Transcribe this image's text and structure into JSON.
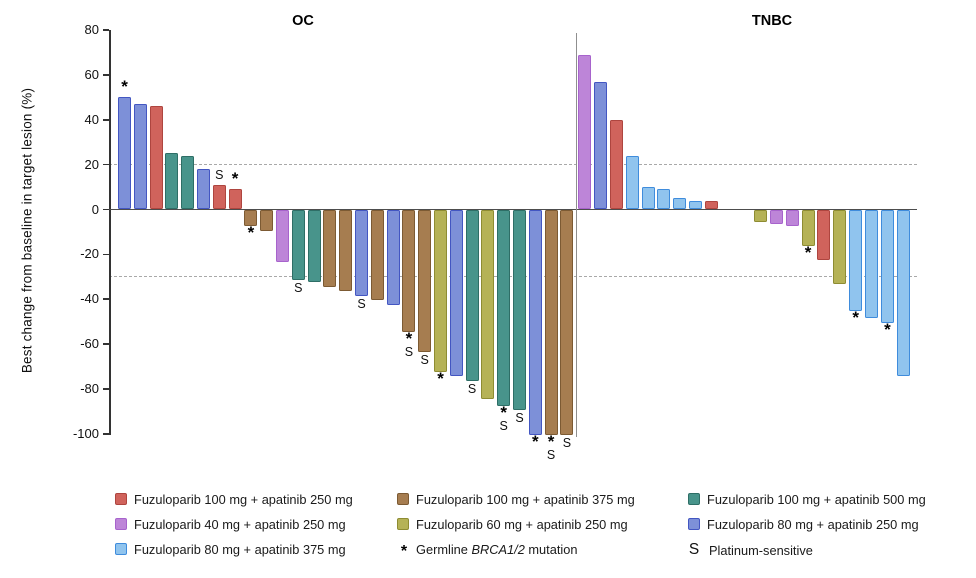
{
  "chart_data": {
    "type": "bar",
    "ylabel": "Best change from baseline in target lesion (%)",
    "ylim": [
      -100,
      80
    ],
    "yticks": [
      80,
      60,
      40,
      20,
      0,
      -20,
      -40,
      -60,
      -80,
      -100
    ],
    "reference_lines": [
      20,
      -30
    ],
    "grid": "dashed reference lines at +20% and -30% only",
    "legend_position": "bottom",
    "series_colors": {
      "f100a250": {
        "label": "Fuzuloparib 100 mg + apatinib 250 mg",
        "fill": "#d0635c",
        "border": "#ae453f"
      },
      "f40a250": {
        "label": "Fuzuloparib 40 mg + apatinib 250 mg",
        "fill": "#bd85d8",
        "border": "#a763cc"
      },
      "f80a375": {
        "label": "Fuzuloparib 80 mg + apatinib 375 mg",
        "fill": "#90c4ee",
        "border": "#3f8cdc"
      },
      "f100a375": {
        "label": "Fuzuloparib 100 mg + apatinib 375 mg",
        "fill": "#a67d50",
        "border": "#7c5a33"
      },
      "f60a250": {
        "label": "Fuzuloparib 60 mg + apatinib 250 mg",
        "fill": "#b5b256",
        "border": "#8e8c32"
      },
      "f100a500": {
        "label": "Fuzuloparib 100 mg + apatinib 500 mg",
        "fill": "#48948b",
        "border": "#2e6e66"
      },
      "f80a250": {
        "label": "Fuzuloparib 80 mg + apatinib 250 mg",
        "fill": "#7d90d8",
        "border": "#4356c2"
      }
    },
    "markers": {
      "star": {
        "symbol": "*",
        "label_prefix": "Germline ",
        "label_italic": "BRCA1/2",
        "label_suffix": " mutation"
      },
      "s": {
        "symbol": "S",
        "label": "Platinum-sensitive"
      }
    },
    "panels": [
      {
        "title": "OC",
        "bars": [
          {
            "value": 50,
            "series": "f80a250",
            "mark": "*"
          },
          {
            "value": 47,
            "series": "f80a250"
          },
          {
            "value": 46,
            "series": "f100a250"
          },
          {
            "value": 25,
            "series": "f100a500"
          },
          {
            "value": 24,
            "series": "f100a500"
          },
          {
            "value": 18,
            "series": "f80a250"
          },
          {
            "value": 11,
            "series": "f100a250",
            "mark": "S"
          },
          {
            "value": 9,
            "series": "f100a250",
            "mark": "*"
          },
          {
            "value": -7,
            "series": "f100a375",
            "mark": "*"
          },
          {
            "value": -9,
            "series": "f100a375"
          },
          {
            "value": -23,
            "series": "f40a250"
          },
          {
            "value": -31,
            "series": "f100a500",
            "mark": "S"
          },
          {
            "value": -32,
            "series": "f100a500"
          },
          {
            "value": -34,
            "series": "f100a375"
          },
          {
            "value": -36,
            "series": "f100a375"
          },
          {
            "value": -38,
            "series": "f80a250",
            "mark": "S"
          },
          {
            "value": -40,
            "series": "f100a375"
          },
          {
            "value": -42,
            "series": "f80a250"
          },
          {
            "value": -54,
            "series": "f100a375",
            "mark": "*S"
          },
          {
            "value": -63,
            "series": "f100a375",
            "mark": "S"
          },
          {
            "value": -72,
            "series": "f60a250",
            "mark": "*"
          },
          {
            "value": -74,
            "series": "f80a250"
          },
          {
            "value": -76,
            "series": "f100a500",
            "mark": "S"
          },
          {
            "value": -84,
            "series": "f60a250"
          },
          {
            "value": -87,
            "series": "f100a500",
            "mark": "*S"
          },
          {
            "value": -89,
            "series": "f100a500",
            "mark": "S"
          },
          {
            "value": -100,
            "series": "f80a250",
            "mark": "*"
          },
          {
            "value": -100,
            "series": "f100a375",
            "mark": "*S"
          },
          {
            "value": -100,
            "series": "f100a375",
            "mark": "S"
          }
        ]
      },
      {
        "title": "TNBC",
        "gap_after_index": 8,
        "bars": [
          {
            "value": 69,
            "series": "f40a250"
          },
          {
            "value": 57,
            "series": "f80a250"
          },
          {
            "value": 40,
            "series": "f100a250"
          },
          {
            "value": 24,
            "series": "f80a375"
          },
          {
            "value": 10,
            "series": "f80a375"
          },
          {
            "value": 9,
            "series": "f80a375"
          },
          {
            "value": 5,
            "series": "f80a375"
          },
          {
            "value": 4,
            "series": "f80a375"
          },
          {
            "value": 4,
            "series": "f100a250"
          },
          {
            "value": -5,
            "series": "f60a250"
          },
          {
            "value": -6,
            "series": "f40a250"
          },
          {
            "value": -7,
            "series": "f40a250"
          },
          {
            "value": -16,
            "series": "f60a250",
            "mark": "*"
          },
          {
            "value": -22,
            "series": "f100a250"
          },
          {
            "value": -33,
            "series": "f60a250"
          },
          {
            "value": -45,
            "series": "f80a375",
            "mark": "*"
          },
          {
            "value": -48,
            "series": "f80a375"
          },
          {
            "value": -50,
            "series": "f80a375",
            "mark": "*"
          },
          {
            "value": -74,
            "series": "f80a375"
          }
        ]
      }
    ],
    "legend_columns": [
      {
        "items": [
          {
            "type": "series",
            "key": "f100a250"
          },
          {
            "type": "series",
            "key": "f40a250"
          },
          {
            "type": "series",
            "key": "f80a375"
          }
        ]
      },
      {
        "items": [
          {
            "type": "series",
            "key": "f100a375"
          },
          {
            "type": "series",
            "key": "f60a250"
          },
          {
            "type": "marker",
            "key": "star"
          }
        ]
      },
      {
        "items": [
          {
            "type": "series",
            "key": "f100a500"
          },
          {
            "type": "series",
            "key": "f80a250"
          },
          {
            "type": "marker",
            "key": "s"
          }
        ]
      }
    ]
  }
}
